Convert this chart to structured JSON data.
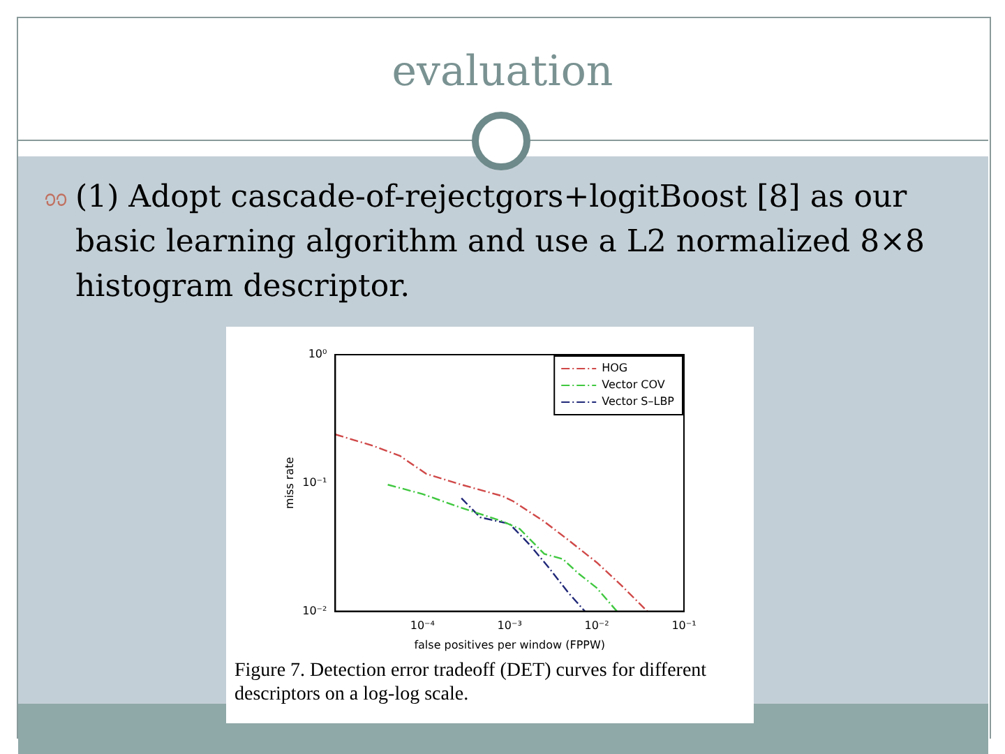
{
  "chart_data": {
    "type": "line",
    "title": "evaluation",
    "subtitle": "(1) Adopt cascade-of-rejectgors+logitBoost [8] as our basic learning algorithm and use a L2 normalized 8×8 histogram descriptor.",
    "xlabel": "false positives per window (FPPW)",
    "ylabel": "miss rate",
    "annotations": [
      "Figure 7. Detection error tradeoff (DET) curves for different descriptors on a log-log scale."
    ],
    "log": "xy",
    "grid": false,
    "legend": "top right",
    "marker": "none",
    "line_style": "dashed",
    "xlim": [
      1e-05,
      0.1
    ],
    "ylim": [
      0.01,
      1
    ],
    "xticks": [
      {
        "value": 0.0001,
        "label": "10⁻⁴"
      },
      {
        "value": 0.001,
        "label": "10⁻³"
      },
      {
        "value": 0.01,
        "label": "10⁻²"
      },
      {
        "value": 0.1,
        "label": "10⁻¹"
      }
    ],
    "yticks": [
      {
        "value": 0.01,
        "label": "10⁻²"
      },
      {
        "value": 0.1,
        "label": "10⁻¹"
      },
      {
        "value": 1,
        "label": "10⁰"
      }
    ],
    "series": [
      {
        "name": "HOG",
        "color": "#d04848",
        "x": [
          1e-05,
          2.7e-05,
          5.5e-05,
          0.00011,
          0.00028,
          0.00083,
          0.0011,
          0.0025,
          0.0047,
          0.01,
          0.019,
          0.038
        ],
        "values": [
          0.239,
          0.195,
          0.163,
          0.118,
          0.097,
          0.079,
          0.072,
          0.05,
          0.036,
          0.024,
          0.016,
          0.01
        ]
      },
      {
        "name": "Vector COV",
        "color": "#40c840",
        "x": [
          4e-05,
          0.0001,
          0.00028,
          0.00078,
          0.0013,
          0.0025,
          0.0041,
          0.006,
          0.01,
          0.017
        ],
        "values": [
          0.097,
          0.082,
          0.064,
          0.051,
          0.044,
          0.028,
          0.0255,
          0.02,
          0.0152,
          0.01
        ]
      },
      {
        "name": "Vector S–LBP",
        "color": "#202878",
        "x": [
          0.00028,
          0.00046,
          0.001,
          0.0017,
          0.0028,
          0.0047,
          0.0073
        ],
        "values": [
          0.076,
          0.054,
          0.048,
          0.033,
          0.022,
          0.014,
          0.01
        ]
      }
    ]
  }
}
